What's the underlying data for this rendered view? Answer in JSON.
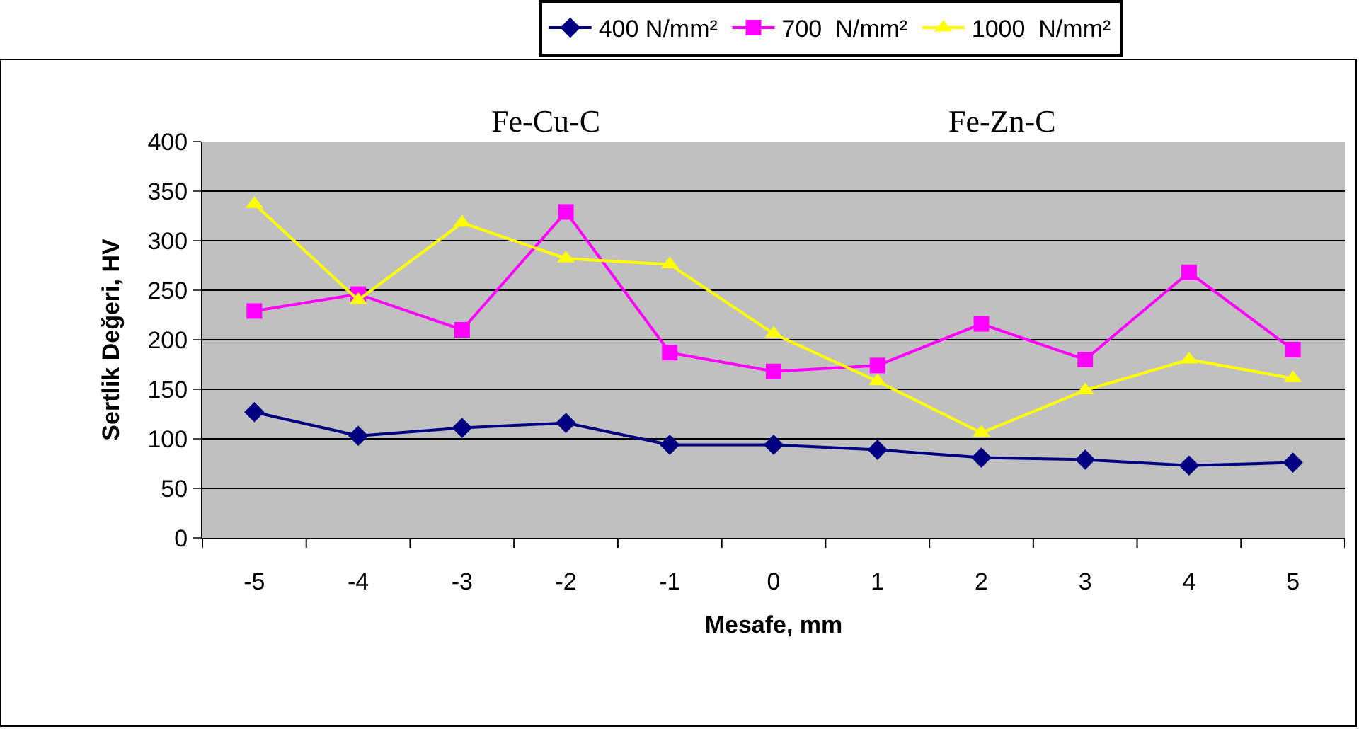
{
  "chart_data": {
    "type": "line",
    "xlabel": "Mesafe, mm",
    "ylabel": "Sertlik Değeri, HV",
    "categories": [
      "-5",
      "-4",
      "-3",
      "-2",
      "-1",
      "0",
      "1",
      "2",
      "3",
      "4",
      "5"
    ],
    "series": [
      {
        "name": "400 N/mm²",
        "color": "#000080",
        "marker": "diamond",
        "values": [
          127,
          103,
          111,
          116,
          94,
          94,
          89,
          81,
          79,
          73,
          76
        ]
      },
      {
        "name": "700  N/mm²",
        "color": "#ff00ff",
        "marker": "square",
        "values": [
          229,
          246,
          210,
          329,
          187,
          168,
          174,
          216,
          180,
          268,
          190
        ]
      },
      {
        "name": "1000  N/mm²",
        "color": "#ffff00",
        "marker": "triangle",
        "values": [
          337,
          240,
          318,
          282,
          276,
          206,
          158,
          106,
          149,
          180,
          161
        ]
      }
    ],
    "annotations": [
      "Fe-Cu-C",
      "Fe-Zn-C"
    ],
    "ylim": [
      0,
      400
    ],
    "yticks": [
      0,
      50,
      100,
      150,
      200,
      250,
      300,
      350,
      400
    ],
    "grid": "y",
    "legend": "top",
    "line_style": "solid"
  }
}
